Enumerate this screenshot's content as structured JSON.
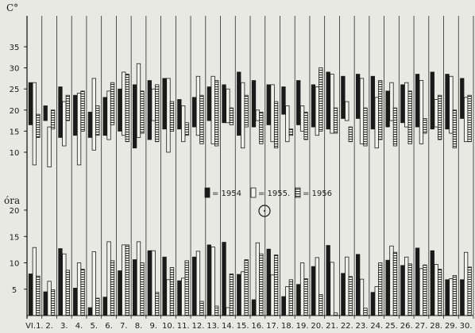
{
  "chart_data": [
    {
      "type": "bar",
      "subtype": "floating-range",
      "ylabel": "C°",
      "ylim": [
        5,
        37
      ],
      "yticks": [
        10,
        15,
        20,
        25,
        30,
        35
      ],
      "categories": [
        "VI.1.",
        "2.",
        "3.",
        "4.",
        "5.",
        "6.",
        "7.",
        "8.",
        "9.",
        "10.",
        "11.",
        "12.",
        "13.",
        "14.",
        "15.",
        "16.",
        "17.",
        "18.",
        "19.",
        "20.",
        "21.",
        "22.",
        "23.",
        "24.",
        "25.",
        "26.",
        "27.",
        "28.",
        "29.",
        "30."
      ],
      "legend": [
        {
          "key": "1954",
          "label": "= 1954"
        },
        {
          "key": "1955",
          "label": "= 1955."
        },
        {
          "key": "1956",
          "label": "= 1956"
        }
      ],
      "series": [
        {
          "name": "1954",
          "color": "#1a1a1a",
          "low": [
            16.5,
            17.5,
            13.5,
            14.0,
            13.5,
            14.0,
            15.0,
            11.0,
            13.0,
            15.5,
            15.5,
            16.0,
            17.5,
            17.0,
            14.0,
            16.0,
            16.5,
            19.0,
            16.5,
            16.0,
            15.5,
            18.0,
            18.0,
            15.5,
            16.0,
            17.0,
            16.0,
            15.5,
            15.5,
            18.0
          ],
          "high": [
            26.5,
            21.0,
            25.5,
            23.5,
            19.5,
            23.0,
            25.0,
            26.0,
            27.0,
            27.5,
            22.5,
            23.0,
            25.5,
            26.0,
            29.0,
            27.0,
            26.0,
            25.5,
            27.0,
            26.0,
            29.0,
            28.0,
            28.5,
            28.0,
            24.5,
            26.0,
            28.5,
            29.0,
            28.5,
            27.5
          ]
        },
        {
          "name": "1955.",
          "color": "#f2f2ec",
          "low": [
            7.0,
            6.5,
            11.5,
            7.0,
            10.5,
            13.0,
            14.0,
            13.5,
            17.5,
            10.0,
            12.5,
            14.0,
            12.0,
            17.0,
            11.0,
            17.5,
            12.5,
            12.5,
            15.0,
            14.0,
            14.5,
            17.5,
            12.0,
            11.0,
            17.5,
            16.0,
            12.0,
            16.0,
            14.5,
            12.5
          ],
          "high": [
            26.5,
            16.0,
            22.0,
            24.0,
            27.5,
            24.5,
            29.0,
            31.0,
            25.0,
            27.5,
            21.0,
            28.0,
            28.0,
            25.0,
            26.5,
            20.0,
            26.0,
            21.0,
            21.0,
            25.5,
            28.5,
            22.0,
            27.5,
            23.0,
            26.5,
            26.5,
            27.0,
            22.5,
            28.0,
            23.0
          ]
        },
        {
          "name": "1956",
          "color": "#e9e9e4",
          "low": [
            13.5,
            15.5,
            17.5,
            15.0,
            14.0,
            16.5,
            12.5,
            14.5,
            12.5,
            15.0,
            14.0,
            12.0,
            11.5,
            16.5,
            16.0,
            12.0,
            11.0,
            14.0,
            13.0,
            15.0,
            14.5,
            12.5,
            11.5,
            13.0,
            11.5,
            12.0,
            14.5,
            13.0,
            11.0,
            12.5
          ],
          "high": [
            19.0,
            20.0,
            23.5,
            24.5,
            21.0,
            26.5,
            28.5,
            24.5,
            26.0,
            22.0,
            17.0,
            23.5,
            27.0,
            20.5,
            23.5,
            19.5,
            22.0,
            15.5,
            19.5,
            30.0,
            20.5,
            16.0,
            20.5,
            27.0,
            20.5,
            24.5,
            18.0,
            23.5,
            20.0,
            23.5
          ]
        }
      ]
    },
    {
      "type": "bar",
      "ylabel": "óra",
      "ylim": [
        0,
        22
      ],
      "yticks": [
        5,
        10,
        15,
        20
      ],
      "series": [
        {
          "name": "1954",
          "values": [
            7.9,
            4.5,
            12.7,
            5.2,
            1.5,
            3.5,
            8.5,
            10.6,
            12.3,
            11.1,
            6.6,
            11.1,
            13.4,
            13.9,
            7.8,
            3.0,
            12.6,
            3.6,
            5.9,
            9.3,
            13.3,
            8.0,
            11.6,
            4.4,
            10.5,
            9.5,
            12.8,
            12.3,
            6.8,
            6.8
          ]
        },
        {
          "name": "1955.",
          "values": [
            12.9,
            6.5,
            11.7,
            10.0,
            12.1,
            14.0,
            13.4,
            14.0,
            12.3,
            6.8,
            7.1,
            12.2,
            13.0,
            1.5,
            8.3,
            13.8,
            7.7,
            5.5,
            10.0,
            11.0,
            10.1,
            11.1,
            6.9,
            5.5,
            13.2,
            11.1,
            8.9,
            9.7,
            7.0,
            12.0
          ]
        },
        {
          "name": "1956",
          "values": [
            7.5,
            4.9,
            8.6,
            8.8,
            3.3,
            10.4,
            13.4,
            10.0,
            4.4,
            9.1,
            10.4,
            2.7,
            1.8,
            7.9,
            10.6,
            11.7,
            11.5,
            6.8,
            7.0,
            4.0,
            0.5,
            7.4,
            1.4,
            10.0,
            12.0,
            9.8,
            9.6,
            8.8,
            7.6,
            9.2
          ]
        }
      ]
    }
  ]
}
